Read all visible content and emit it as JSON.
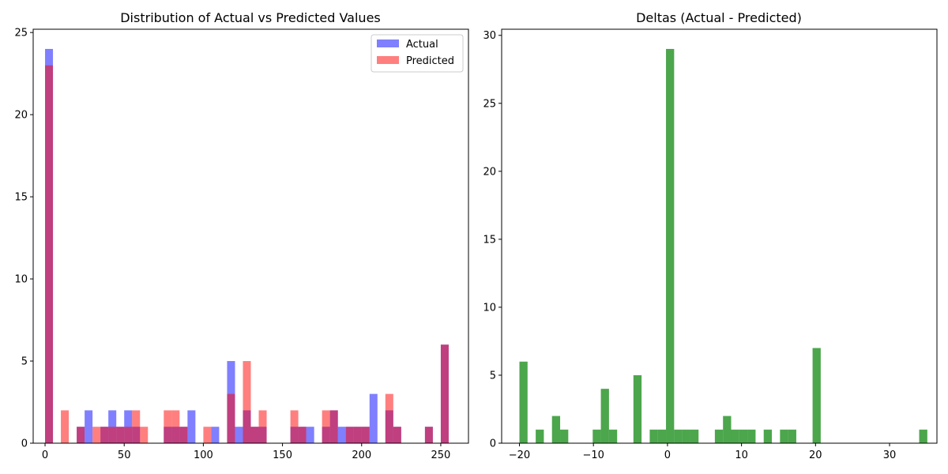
{
  "chart_data": [
    {
      "type": "bar",
      "title": "Distribution of Actual vs Predicted Values",
      "xlabel": "",
      "ylabel": "",
      "xlim": [
        -7.5,
        267.5
      ],
      "ylim": [
        0,
        25.2
      ],
      "xticks": [
        "0",
        "50",
        "100",
        "150",
        "200",
        "250"
      ],
      "yticks": [
        "0",
        "5",
        "10",
        "15",
        "20",
        "25"
      ],
      "grid": false,
      "legend": "top-right",
      "bin_width": 5,
      "series": [
        {
          "name": "Actual",
          "color": "#0000ff",
          "opacity": 0.5,
          "bins": [
            [
              0,
              24
            ],
            [
              20,
              1
            ],
            [
              25,
              2
            ],
            [
              35,
              1
            ],
            [
              40,
              2
            ],
            [
              45,
              1
            ],
            [
              50,
              2
            ],
            [
              55,
              1
            ],
            [
              75,
              1
            ],
            [
              80,
              1
            ],
            [
              85,
              1
            ],
            [
              90,
              2
            ],
            [
              105,
              1
            ],
            [
              115,
              5
            ],
            [
              120,
              1
            ],
            [
              125,
              2
            ],
            [
              130,
              1
            ],
            [
              135,
              1
            ],
            [
              155,
              1
            ],
            [
              160,
              1
            ],
            [
              165,
              1
            ],
            [
              175,
              1
            ],
            [
              180,
              2
            ],
            [
              185,
              1
            ],
            [
              190,
              1
            ],
            [
              195,
              1
            ],
            [
              200,
              1
            ],
            [
              205,
              3
            ],
            [
              215,
              2
            ],
            [
              220,
              1
            ],
            [
              240,
              1
            ],
            [
              250,
              6
            ]
          ]
        },
        {
          "name": "Predicted",
          "color": "#ff0000",
          "opacity": 0.5,
          "bins": [
            [
              0,
              23
            ],
            [
              10,
              2
            ],
            [
              20,
              1
            ],
            [
              30,
              1
            ],
            [
              35,
              1
            ],
            [
              40,
              1
            ],
            [
              45,
              1
            ],
            [
              50,
              1
            ],
            [
              55,
              2
            ],
            [
              60,
              1
            ],
            [
              75,
              2
            ],
            [
              80,
              2
            ],
            [
              85,
              1
            ],
            [
              100,
              1
            ],
            [
              115,
              3
            ],
            [
              125,
              5
            ],
            [
              130,
              1
            ],
            [
              135,
              2
            ],
            [
              155,
              2
            ],
            [
              160,
              1
            ],
            [
              175,
              2
            ],
            [
              180,
              2
            ],
            [
              190,
              1
            ],
            [
              195,
              1
            ],
            [
              200,
              1
            ],
            [
              215,
              3
            ],
            [
              220,
              1
            ],
            [
              240,
              1
            ],
            [
              250,
              6
            ]
          ]
        }
      ]
    },
    {
      "type": "bar",
      "title": "Deltas (Actual - Predicted)",
      "xlabel": "",
      "ylabel": "",
      "xlim": [
        -22.4,
        36.4
      ],
      "ylim": [
        0,
        30.45
      ],
      "xticks": [
        "−20",
        "−10",
        "0",
        "10",
        "20",
        "30"
      ],
      "yticks": [
        "0",
        "5",
        "10",
        "15",
        "20",
        "25",
        "30"
      ],
      "grid": false,
      "bin_width": 1.1,
      "series": [
        {
          "color": "#008000",
          "opacity": 0.7,
          "bins": [
            [
              -20,
              6
            ],
            [
              -17.8,
              1
            ],
            [
              -15.6,
              2
            ],
            [
              -14.5,
              1
            ],
            [
              -10.1,
              1
            ],
            [
              -9,
              4
            ],
            [
              -7.9,
              1
            ],
            [
              -4.6,
              5
            ],
            [
              -2.4,
              1
            ],
            [
              -1.3,
              1
            ],
            [
              -0.2,
              29
            ],
            [
              0.9,
              1
            ],
            [
              2,
              1
            ],
            [
              3.1,
              1
            ],
            [
              6.4,
              1
            ],
            [
              7.5,
              2
            ],
            [
              8.6,
              1
            ],
            [
              9.7,
              1
            ],
            [
              10.8,
              1
            ],
            [
              13,
              1
            ],
            [
              15.2,
              1
            ],
            [
              16.3,
              1
            ],
            [
              19.6,
              7
            ],
            [
              34,
              1
            ]
          ]
        }
      ]
    }
  ]
}
